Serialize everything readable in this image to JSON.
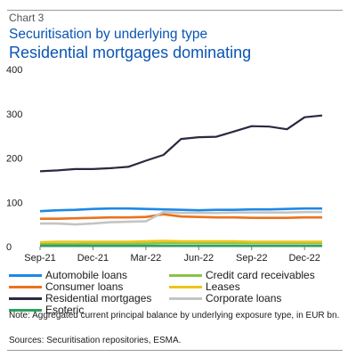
{
  "header": {
    "chart_label": "Chart 3",
    "title": "Securitisation by underlying type",
    "subtitle": "Residential mortgages dominating"
  },
  "chart_data": {
    "type": "line",
    "ylim": [
      0,
      400
    ],
    "y_ticks": [
      0,
      100,
      200,
      300,
      400
    ],
    "x_ticks": [
      "Sep-21",
      "Dec-21",
      "Mar-22",
      "Jun-22",
      "Sep-22",
      "Dec-22"
    ],
    "xlim": [
      "Sep-21",
      "Jan-23"
    ],
    "grid": false,
    "legend_placement": "bottom",
    "x": [
      "Sep-21",
      "Oct-21",
      "Nov-21",
      "Dec-21",
      "Jan-22",
      "Feb-22",
      "Mar-22",
      "Apr-22",
      "May-22",
      "Jun-22",
      "Jul-22",
      "Aug-22",
      "Sep-22",
      "Oct-22",
      "Nov-22",
      "Dec-22",
      "Jan-23"
    ],
    "series": [
      {
        "name": "Automobile loans",
        "color": "#1e88e5",
        "values": [
          80,
          82,
          83,
          85,
          86,
          86,
          85,
          84,
          83,
          82,
          83,
          83,
          84,
          84,
          85,
          86,
          86
        ]
      },
      {
        "name": "Credit card receivables",
        "color": "#8bc34a",
        "values": [
          6,
          6,
          6,
          7,
          7,
          7,
          7,
          8,
          8,
          8,
          8,
          8,
          8,
          8,
          8,
          8,
          8
        ]
      },
      {
        "name": "Consumer loans",
        "color": "#e8731e",
        "values": [
          63,
          63,
          64,
          65,
          66,
          66,
          67,
          73,
          68,
          67,
          66,
          66,
          65,
          65,
          65,
          66,
          66
        ]
      },
      {
        "name": "Leases",
        "color": "#f0c419",
        "values": [
          10,
          11,
          11,
          11,
          11,
          11,
          12,
          13,
          12,
          12,
          12,
          12,
          11,
          11,
          11,
          11,
          11
        ]
      },
      {
        "name": "Residential mortgages",
        "color": "#2b2940",
        "values": [
          170,
          172,
          175,
          175,
          177,
          180,
          194,
          207,
          243,
          247,
          248,
          260,
          272,
          271,
          265,
          292,
          296
        ]
      },
      {
        "name": "Corporate loans",
        "color": "#c4c4c4",
        "values": [
          52,
          52,
          50,
          52,
          55,
          56,
          57,
          78,
          76,
          76,
          76,
          77,
          77,
          77,
          77,
          78,
          78
        ]
      },
      {
        "name": "Esoteric",
        "color": "#2ca25f",
        "values": [
          2,
          2,
          2,
          2,
          2,
          2,
          2,
          2,
          2,
          2,
          2,
          2,
          2,
          2,
          2,
          2,
          2
        ]
      }
    ]
  },
  "footer": {
    "note": "Note: Aggregated current principal balance by underlying exposure type, in EUR bn.",
    "source": "Sources: Securitisation repositories, ESMA."
  }
}
